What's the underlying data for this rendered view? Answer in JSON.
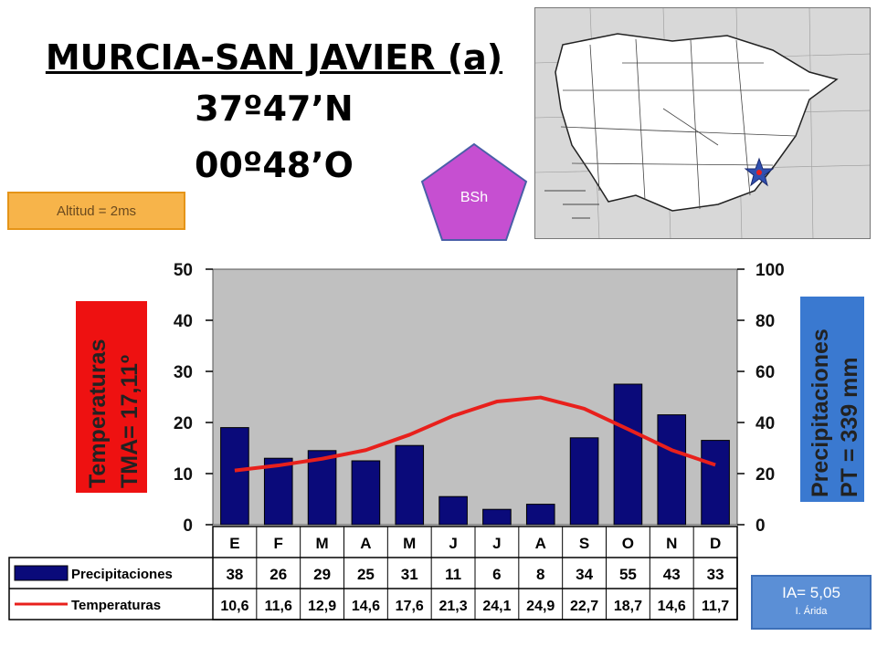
{
  "header": {
    "station": "MURCIA-SAN JAVIER (a)",
    "latitude": "37º47’N",
    "longitude": "00º48’O",
    "altitude": "Altitud = 2ms",
    "climate_code": "BSh",
    "aridity_index": "IA= 5,05",
    "aridity_class": "I. Árida"
  },
  "colors": {
    "bar": "#0a0a7a",
    "line": "#e8201c",
    "plot_bg": "#c0c0c0",
    "temp_label_bg": "#ee1111",
    "precip_label_bg": "#3a79d0",
    "pentagon": "#c64fd1",
    "map_marker": "#3050b0"
  },
  "chart_data": {
    "type": "bar+line",
    "categories": [
      "E",
      "F",
      "M",
      "A",
      "M",
      "J",
      "J",
      "A",
      "S",
      "O",
      "N",
      "D"
    ],
    "series": [
      {
        "name": "Precipitaciones",
        "type": "bar",
        "axis": "right",
        "values": [
          38,
          26,
          29,
          25,
          31,
          11,
          6,
          8,
          34,
          55,
          43,
          33
        ]
      },
      {
        "name": "Temperaturas",
        "type": "line",
        "axis": "left",
        "values": [
          10.6,
          11.6,
          12.9,
          14.6,
          17.6,
          21.3,
          24.1,
          24.9,
          22.7,
          18.7,
          14.6,
          11.7
        ]
      }
    ],
    "table_precip": [
      "38",
      "26",
      "29",
      "25",
      "31",
      "11",
      "6",
      "8",
      "34",
      "55",
      "43",
      "33"
    ],
    "table_temp": [
      "10,6",
      "11,6",
      "12,9",
      "14,6",
      "17,6",
      "21,3",
      "24,1",
      "24,9",
      "22,7",
      "18,7",
      "14,6",
      "11,7"
    ],
    "left_axis": {
      "ylim": [
        0,
        50
      ],
      "ticks": [
        "0",
        "10",
        "20",
        "30",
        "40",
        "50"
      ],
      "label_1": "Temperaturas",
      "label_2": "TMA= 17,11º"
    },
    "right_axis": {
      "ylim": [
        0,
        100
      ],
      "ticks": [
        "0",
        "20",
        "40",
        "60",
        "80",
        "100"
      ],
      "label_1": "Precipitaciones",
      "label_2": "PT = 339 mm"
    },
    "legend": [
      "Precipitaciones",
      "Temperaturas"
    ],
    "grid": false
  }
}
